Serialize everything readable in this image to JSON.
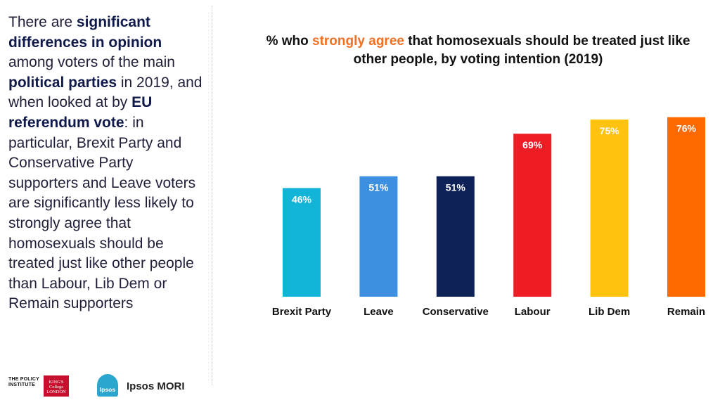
{
  "summary": {
    "segments": [
      {
        "text": "There are ",
        "bold": false
      },
      {
        "text": "significant differences in opinion",
        "bold": true
      },
      {
        "text": " among voters of the main ",
        "bold": false
      },
      {
        "text": "political parties",
        "bold": true
      },
      {
        "text": " in 2019, and when looked at by ",
        "bold": false
      },
      {
        "text": "EU referendum vote",
        "bold": true
      },
      {
        "text": ": in particular, Brexit Party and Conservative Party supporters and Leave voters are significantly less likely to strongly agree that homosexuals should be treated just like other people than Labour, Lib Dem or Remain supporters",
        "bold": false
      }
    ]
  },
  "logos": {
    "policy_institute": "THE POLICY INSTITUTE",
    "kings": "KING'S College LONDON",
    "ipsos_badge": "Ipsos",
    "ipsos_mori": "Ipsos MORI"
  },
  "chart_data": {
    "type": "bar",
    "title_parts": [
      "% who ",
      "strongly agree",
      " that homosexuals should be treated just like other people, by voting intention (2019)"
    ],
    "title_highlight_color": "#f37021",
    "categories": [
      "Brexit Party",
      "Leave",
      "Conservative",
      "Labour",
      "Lib Dem",
      "Remain"
    ],
    "values": [
      46,
      51,
      51,
      69,
      75,
      76
    ],
    "value_labels": [
      "46%",
      "51%",
      "51%",
      "69%",
      "75%",
      "76%"
    ],
    "colors": [
      "#12b5d8",
      "#3d8fe0",
      "#0f2258",
      "#ee1c25",
      "#ffc20e",
      "#ff6a00"
    ],
    "unit": "%",
    "ylim": [
      0,
      100
    ],
    "grid": false,
    "legend": "none",
    "xlabel": "",
    "ylabel": ""
  }
}
